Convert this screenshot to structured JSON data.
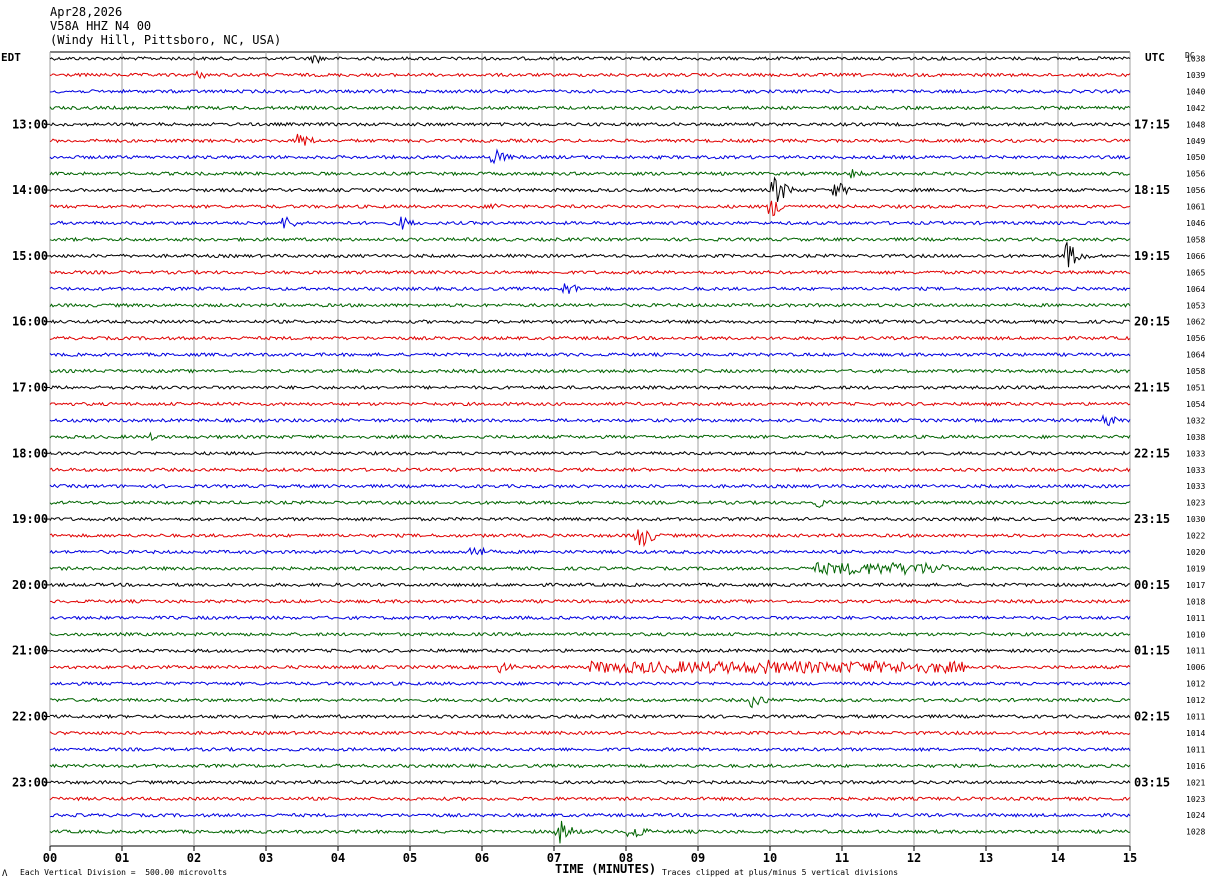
{
  "header": {
    "date": "Apr28,2026",
    "channel": "V58A HHZ N4 00",
    "location": "(Windy Hill, Pittsboro, NC, USA)"
  },
  "footer": {
    "scale_note": "Each Vertical Division =  500.00 microvolts",
    "clip_note": "Traces clipped at plus/minus 5 vertical divisions",
    "corner_mark": "Λ"
  },
  "colors": {
    "trace_cycle": [
      "#000000",
      "#e00000",
      "#0000e0",
      "#006400"
    ],
    "grid": "#a0a0a0"
  },
  "chart_data": {
    "type": "line",
    "subtype": "seismic helicorder",
    "title": "V58A HHZ N4 00",
    "xlabel": "TIME (MINUTES)",
    "left_axis_label": "EDT",
    "right_axis_label": "UTC",
    "right_corner_label": "DC",
    "x_ticks": [
      "00",
      "01",
      "02",
      "03",
      "04",
      "05",
      "06",
      "07",
      "08",
      "09",
      "10",
      "11",
      "12",
      "13",
      "14",
      "15"
    ],
    "xlim": [
      0,
      15
    ],
    "trace_interval_minutes": 15,
    "trace_count": 48,
    "edt_labels": [
      "13:00",
      "14:00",
      "15:00",
      "16:00",
      "17:00",
      "18:00",
      "19:00",
      "20:00",
      "21:00",
      "22:00",
      "23:00"
    ],
    "utc_labels": [
      "17:15",
      "18:15",
      "19:15",
      "20:15",
      "21:15",
      "22:15",
      "23:15",
      "00:15",
      "01:15",
      "02:15",
      "03:15"
    ],
    "dc_offsets": [
      "1038",
      "1039",
      "1040",
      "1042",
      "1048",
      "1049",
      "1050",
      "1056",
      "1056",
      "1061",
      "1046",
      "1058",
      "1066",
      "1065",
      "1064",
      "1053",
      "1062",
      "1056",
      "1064",
      "1058",
      "1051",
      "1054",
      "1032",
      "1038",
      "1033",
      "1033",
      "1033",
      "1023",
      "1030",
      "1022",
      "1020",
      "1019",
      "1017",
      "1018",
      "1011",
      "1010",
      "1011",
      "1006",
      "1012",
      "1012",
      "1011",
      "1014",
      "1011",
      "1016",
      "1021",
      "1023",
      "1024",
      "1028"
    ],
    "events": [
      {
        "trace": 0,
        "minute": 3.7,
        "amp": 5
      },
      {
        "trace": 1,
        "minute": 2.1,
        "amp": 4
      },
      {
        "trace": 5,
        "minute": 3.5,
        "amp": 8
      },
      {
        "trace": 6,
        "minute": 6.2,
        "amp": 8
      },
      {
        "trace": 7,
        "minute": 11.2,
        "amp": 5
      },
      {
        "trace": 8,
        "minute": 10.1,
        "amp": 14
      },
      {
        "trace": 8,
        "minute": 10.95,
        "amp": 8
      },
      {
        "trace": 9,
        "minute": 10.05,
        "amp": 10
      },
      {
        "trace": 9,
        "minute": 6.2,
        "amp": 4
      },
      {
        "trace": 10,
        "minute": 3.3,
        "amp": 7
      },
      {
        "trace": 10,
        "minute": 4.9,
        "amp": 7
      },
      {
        "trace": 12,
        "minute": 14.15,
        "amp": 14
      },
      {
        "trace": 14,
        "minute": 7.2,
        "amp": 7
      },
      {
        "trace": 22,
        "minute": 14.7,
        "amp": 6
      },
      {
        "trace": 23,
        "minute": 1.4,
        "amp": 4
      },
      {
        "trace": 27,
        "minute": 10.7,
        "amp": 5
      },
      {
        "trace": 29,
        "minute": 8.2,
        "amp": 14
      },
      {
        "trace": 30,
        "minute": 5.9,
        "amp": 8
      },
      {
        "trace": 31,
        "minute": 11.5,
        "amp": 6
      },
      {
        "trace": 37,
        "minute": 6.3,
        "amp": 6
      },
      {
        "trace": 37,
        "minute": 10.0,
        "amp": 8
      },
      {
        "trace": 39,
        "minute": 9.8,
        "amp": 8
      },
      {
        "trace": 47,
        "minute": 7.1,
        "amp": 12
      },
      {
        "trace": 47,
        "minute": 8.1,
        "amp": 9
      }
    ],
    "bursts": [
      {
        "trace": 31,
        "from": 10.6,
        "to": 12.5,
        "amp": 6
      },
      {
        "trace": 37,
        "from": 7.5,
        "to": 12.7,
        "amp": 6
      }
    ]
  }
}
